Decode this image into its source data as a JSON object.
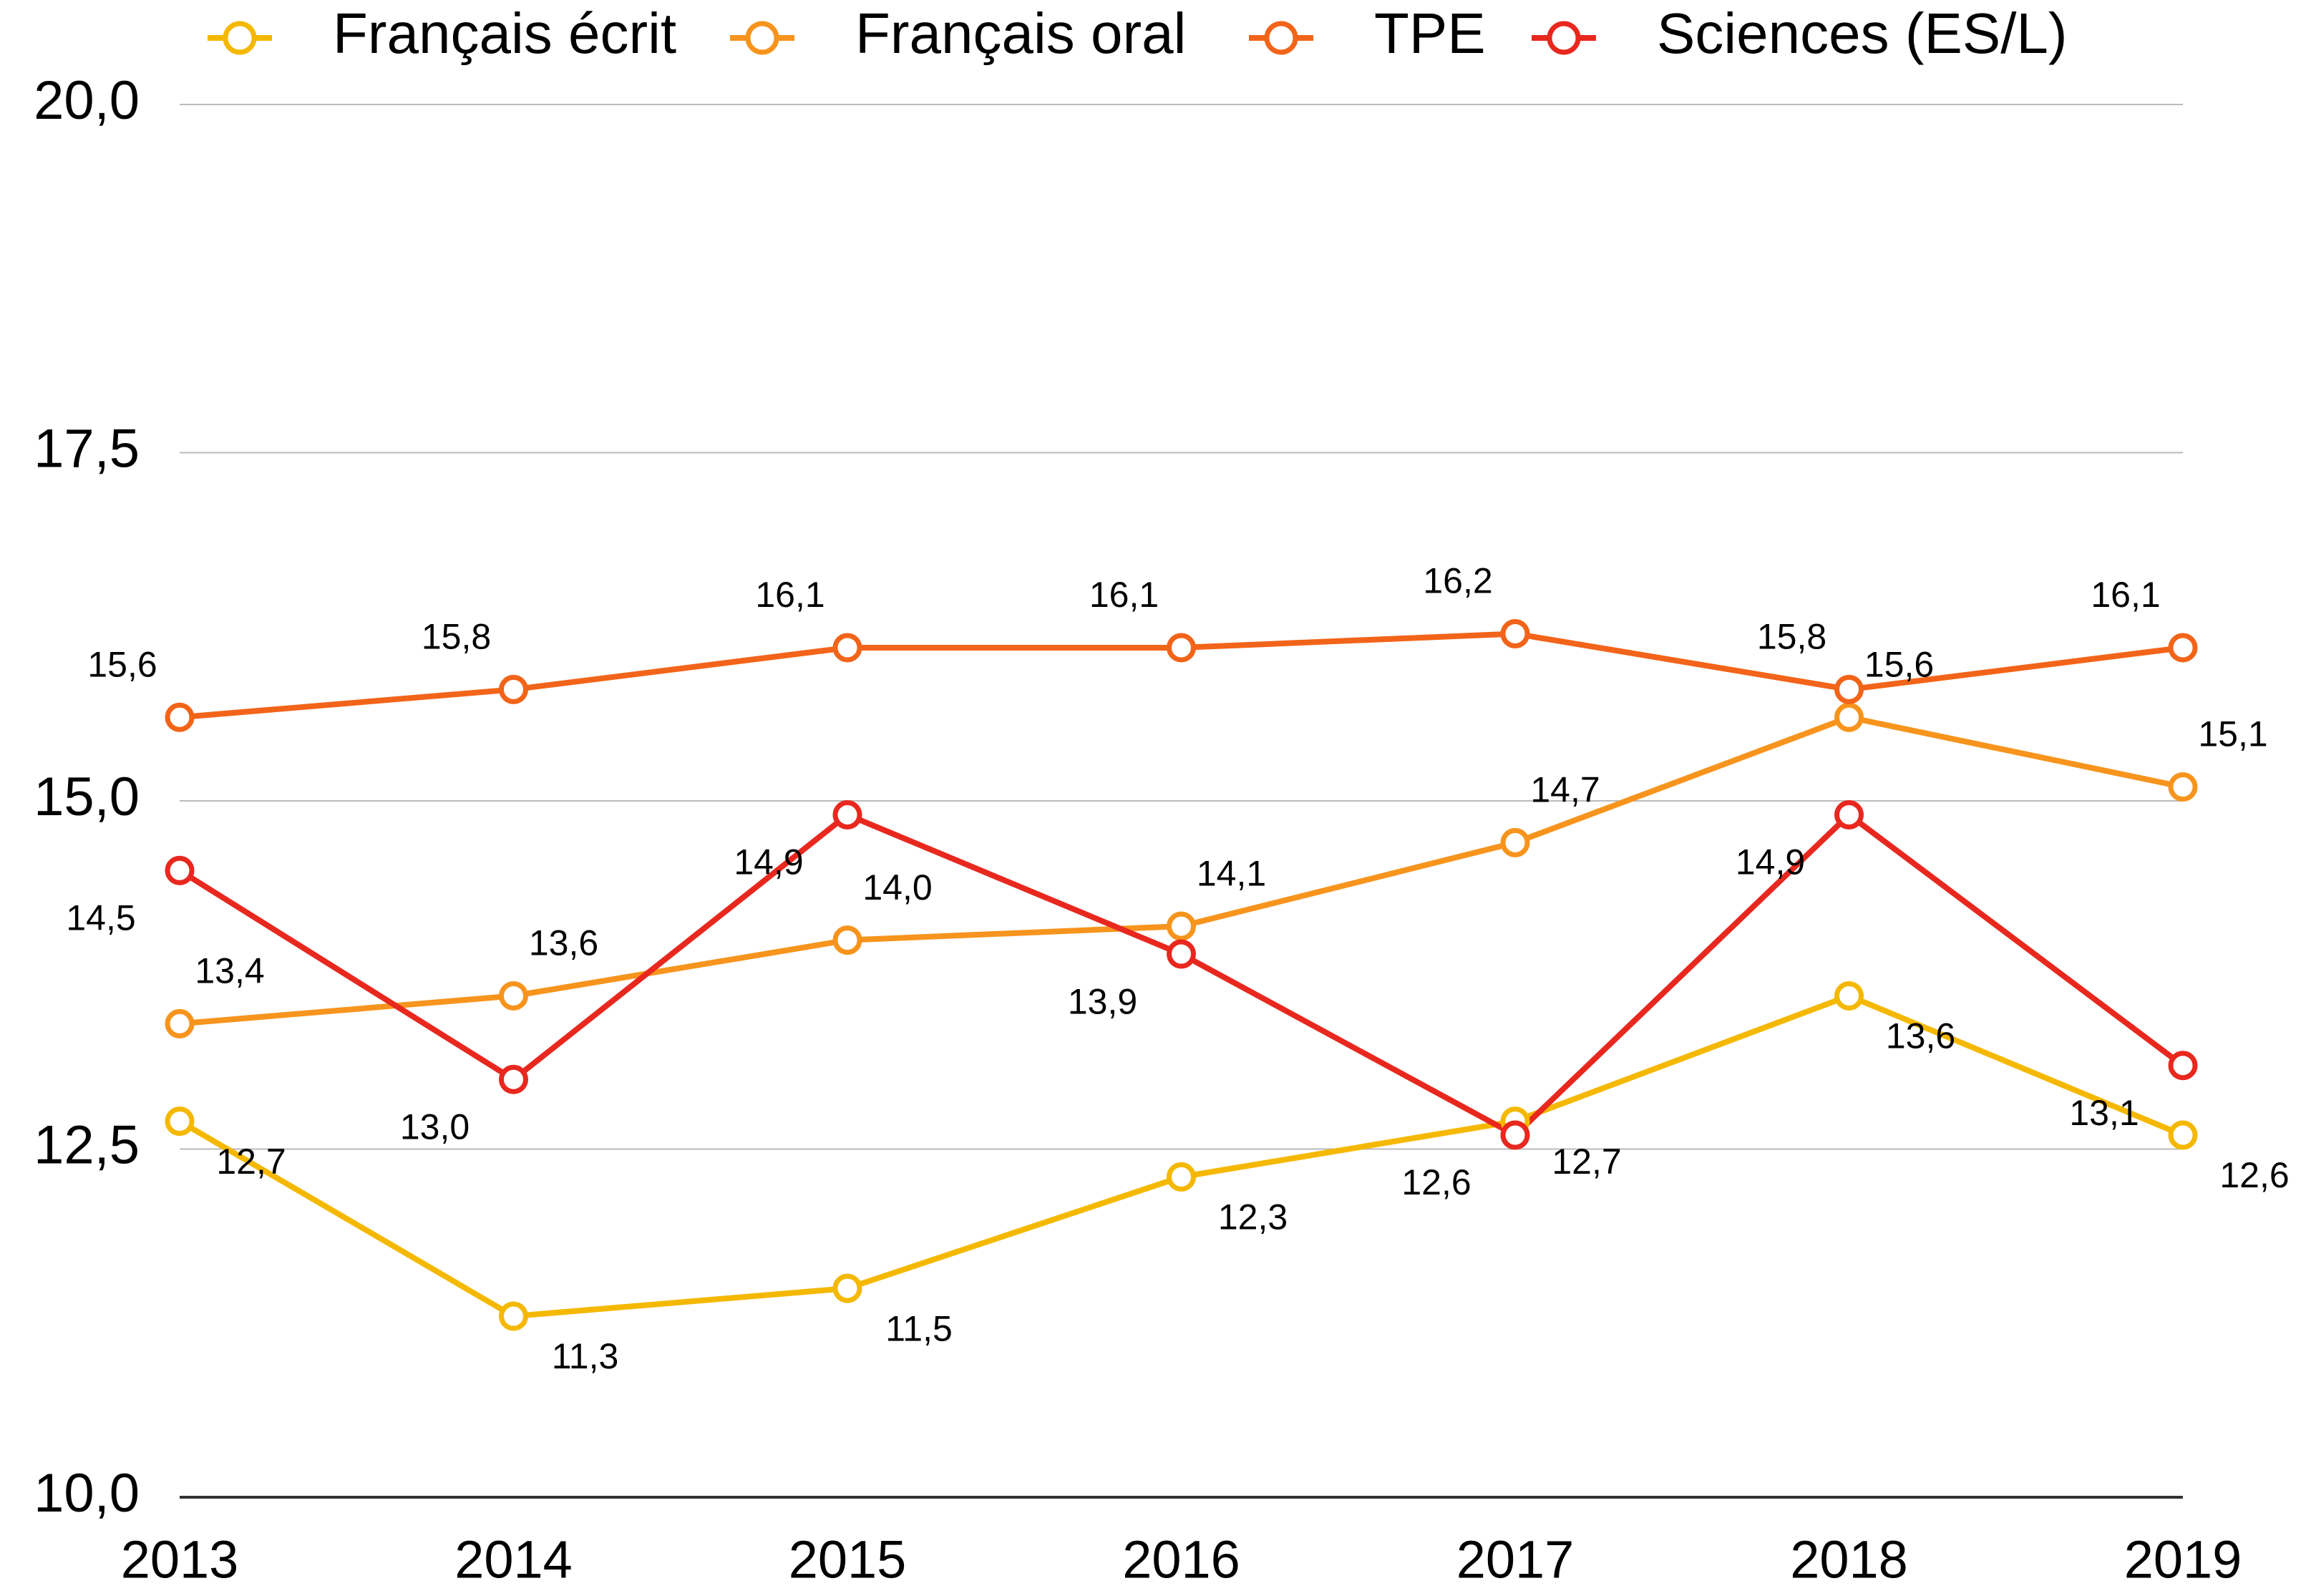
{
  "chart_data": {
    "type": "line",
    "categories": [
      "2013",
      "2014",
      "2015",
      "2016",
      "2017",
      "2018",
      "2019"
    ],
    "series": [
      {
        "name": "Français écrit",
        "color": "#f5b800",
        "values": [
          12.7,
          11.3,
          11.5,
          12.3,
          12.7,
          13.6,
          12.6
        ],
        "value_labels": [
          "12,7",
          "11,3",
          "11,5",
          "12,3",
          "12,7",
          "13,6",
          "12,6"
        ]
      },
      {
        "name": "Français oral",
        "color": "#f7941d",
        "values": [
          13.4,
          13.6,
          14.0,
          14.1,
          14.7,
          15.6,
          15.1
        ],
        "value_labels": [
          "13,4",
          "13,6",
          "14,0",
          "14,1",
          "14,7",
          "15,6",
          "15,1"
        ]
      },
      {
        "name": "TPE",
        "color": "#f26419",
        "values": [
          15.6,
          15.8,
          16.1,
          16.1,
          16.2,
          15.8,
          16.1
        ],
        "value_labels": [
          "15,6",
          "15,8",
          "16,1",
          "16,1",
          "16,2",
          "15,8",
          "16,1"
        ]
      },
      {
        "name": "Sciences (ES/L)",
        "color": "#e8281e",
        "values": [
          14.5,
          13.0,
          14.9,
          13.9,
          12.6,
          14.9,
          13.1
        ],
        "value_labels": [
          "14,5",
          "13,0",
          "14,9",
          "13,9",
          "12,6",
          "14,9",
          "13,1"
        ]
      }
    ],
    "ylim": [
      10,
      20
    ],
    "yticks": [
      {
        "value": 10,
        "label": "10,0"
      },
      {
        "value": 12.5,
        "label": "12,5"
      },
      {
        "value": 15,
        "label": "15,0"
      },
      {
        "value": 17.5,
        "label": "17,5"
      },
      {
        "value": 20,
        "label": "20,0"
      }
    ],
    "grid": true,
    "legend": "top"
  }
}
